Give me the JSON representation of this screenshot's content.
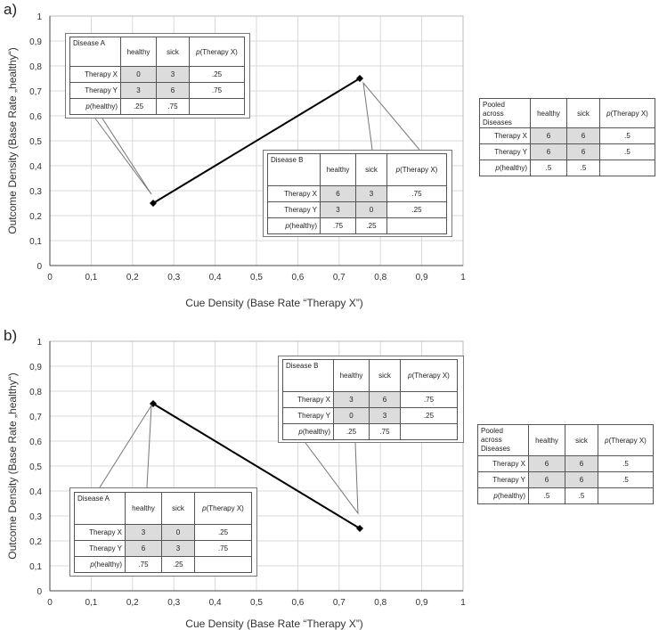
{
  "panels": [
    {
      "label": "a)",
      "xlabel": "Cue Density (Base Rate “Therapy X”)",
      "ylabel": "Outcome Density (Base Rate „healthy“)",
      "disease_tables": [
        {
          "name": "Disease A",
          "cols": [
            "healthy",
            "sick",
            "p(Therapy X)"
          ],
          "rows": [
            {
              "label": "Therapy X",
              "cells": [
                "0",
                "3",
                ".25"
              ]
            },
            {
              "label": "Therapy Y",
              "cells": [
                "3",
                "6",
                ".75"
              ]
            },
            {
              "label": "p(healthy)",
              "cells": [
                ".25",
                ".75",
                ""
              ]
            }
          ]
        },
        {
          "name": "Disease B",
          "cols": [
            "healthy",
            "sick",
            "p(Therapy X)"
          ],
          "rows": [
            {
              "label": "Therapy X",
              "cells": [
                "6",
                "3",
                ".75"
              ]
            },
            {
              "label": "Therapy Y",
              "cells": [
                "3",
                "0",
                ".25"
              ]
            },
            {
              "label": "p(healthy)",
              "cells": [
                ".75",
                ".25",
                ""
              ]
            }
          ]
        }
      ],
      "pooled": {
        "name": "Pooled across Diseases",
        "cols": [
          "healthy",
          "sick",
          "p(Therapy X)"
        ],
        "rows": [
          {
            "label": "Therapy X",
            "cells": [
              "6",
              "6",
              ".5"
            ]
          },
          {
            "label": "Therapy Y",
            "cells": [
              "6",
              "6",
              ".5"
            ]
          },
          {
            "label": "p(healthy)",
            "cells": [
              ".5",
              ".5",
              ""
            ]
          }
        ]
      }
    },
    {
      "label": "b)",
      "xlabel": "Cue Density (Base Rate “Therapy X”)",
      "ylabel": "Outcome Density (Base Rate „healthy“)",
      "disease_tables": [
        {
          "name": "Disease B",
          "cols": [
            "healthy",
            "sick",
            "p(Therapy X)"
          ],
          "rows": [
            {
              "label": "Therapy X",
              "cells": [
                "3",
                "6",
                ".75"
              ]
            },
            {
              "label": "Therapy Y",
              "cells": [
                "0",
                "3",
                ".25"
              ]
            },
            {
              "label": "p(healthy)",
              "cells": [
                ".25",
                ".75",
                ""
              ]
            }
          ]
        },
        {
          "name": "Disease A",
          "cols": [
            "healthy",
            "sick",
            "p(Therapy X)"
          ],
          "rows": [
            {
              "label": "Therapy X",
              "cells": [
                "3",
                "0",
                ".25"
              ]
            },
            {
              "label": "Therapy Y",
              "cells": [
                "6",
                "3",
                ".75"
              ]
            },
            {
              "label": "p(healthy)",
              "cells": [
                ".75",
                ".25",
                ""
              ]
            }
          ]
        }
      ],
      "pooled": {
        "name": "Pooled across Diseases",
        "cols": [
          "healthy",
          "sick",
          "p(Therapy X)"
        ],
        "rows": [
          {
            "label": "Therapy X",
            "cells": [
              "6",
              "6",
              ".5"
            ]
          },
          {
            "label": "Therapy Y",
            "cells": [
              "6",
              "6",
              ".5"
            ]
          },
          {
            "label": "p(healthy)",
            "cells": [
              ".5",
              ".5",
              ""
            ]
          }
        ]
      }
    }
  ],
  "chart_data": [
    {
      "type": "line",
      "xlabel": "Cue Density (Base Rate “Therapy X”)",
      "ylabel": "Outcome Density (Base Rate „healthy“)",
      "xlim": [
        0,
        1
      ],
      "ylim": [
        0,
        1
      ],
      "xticks": [
        "0",
        "0,1",
        "0,2",
        "0,3",
        "0,4",
        "0,5",
        "0,6",
        "0,7",
        "0,8",
        "0,9",
        "1"
      ],
      "yticks": [
        "0",
        "0,1",
        "0,2",
        "0,3",
        "0,4",
        "0,5",
        "0,6",
        "0,7",
        "0,8",
        "0,9",
        "1"
      ],
      "grid": true,
      "points": [
        {
          "x": 0.25,
          "y": 0.25
        },
        {
          "x": 0.75,
          "y": 0.75
        }
      ]
    },
    {
      "type": "line",
      "xlabel": "Cue Density (Base Rate “Therapy X”)",
      "ylabel": "Outcome Density (Base Rate „healthy“)",
      "xlim": [
        0,
        1
      ],
      "ylim": [
        0,
        1
      ],
      "xticks": [
        "0",
        "0,1",
        "0,2",
        "0,3",
        "0,4",
        "0,5",
        "0,6",
        "0,7",
        "0,8",
        "0,9",
        "1"
      ],
      "yticks": [
        "0",
        "0,1",
        "0,2",
        "0,3",
        "0,4",
        "0,5",
        "0,6",
        "0,7",
        "0,8",
        "0,9",
        "1"
      ],
      "grid": true,
      "points": [
        {
          "x": 0.25,
          "y": 0.75
        },
        {
          "x": 0.75,
          "y": 0.25
        }
      ]
    }
  ]
}
